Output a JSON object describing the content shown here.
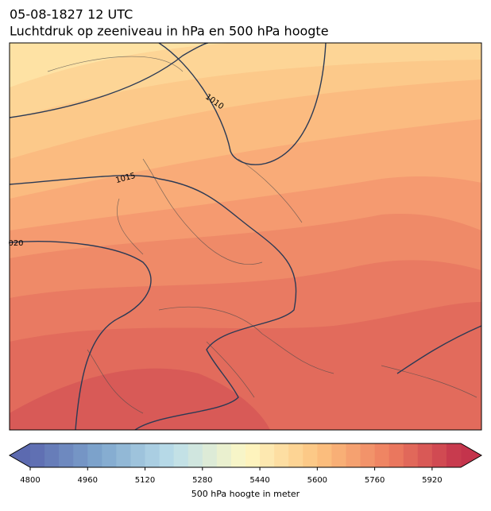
{
  "header": {
    "date": "05-08-1827 12 UTC",
    "title": "Luchtdruk op zeeniveau in hPa en 500 hPa hoogte"
  },
  "map": {
    "contour_labels": [
      "1010",
      "1015",
      "020"
    ]
  },
  "colorbar": {
    "label": "500 hPa hoogte in meter",
    "lim": [
      4800,
      6000
    ],
    "ticks": [
      4800,
      4960,
      5120,
      5280,
      5440,
      5600,
      5760,
      5920
    ]
  }
}
